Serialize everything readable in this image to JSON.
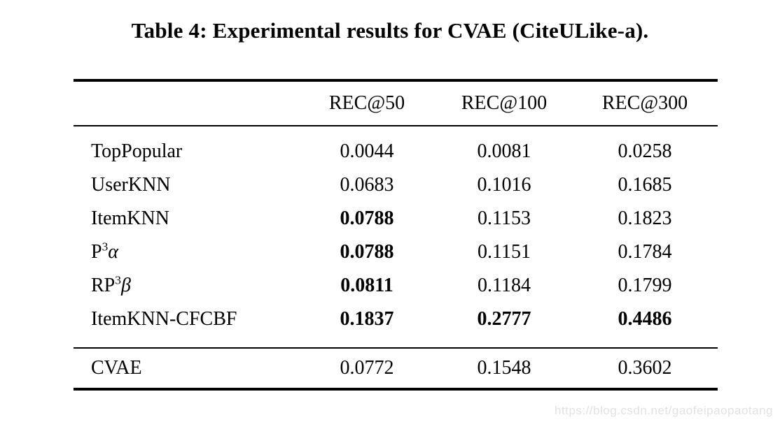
{
  "title": "Table 4: Experimental results for CVAE (CiteULike-a).",
  "table": {
    "columns": [
      "REC@50",
      "REC@100",
      "REC@300"
    ],
    "rows": [
      {
        "label_base": "TopPopular",
        "values": [
          "0.0044",
          "0.0081",
          "0.0258"
        ],
        "bold": [
          false,
          false,
          false
        ]
      },
      {
        "label_base": "UserKNN",
        "values": [
          "0.0683",
          "0.1016",
          "0.1685"
        ],
        "bold": [
          false,
          false,
          false
        ]
      },
      {
        "label_base": "ItemKNN",
        "values": [
          "0.0788",
          "0.1153",
          "0.1823"
        ],
        "bold": [
          true,
          false,
          false
        ]
      },
      {
        "label_base": "P",
        "label_sup": "3",
        "label_greek": "α",
        "values": [
          "0.0788",
          "0.1151",
          "0.1784"
        ],
        "bold": [
          true,
          false,
          false
        ]
      },
      {
        "label_base": "RP",
        "label_sup": "3",
        "label_greek": "β",
        "values": [
          "0.0811",
          "0.1184",
          "0.1799"
        ],
        "bold": [
          true,
          false,
          false
        ]
      },
      {
        "label_base": "ItemKNN-CFCBF",
        "values": [
          "0.1837",
          "0.2777",
          "0.4486"
        ],
        "bold": [
          true,
          true,
          true
        ]
      }
    ],
    "footer_row": {
      "label": "CVAE",
      "values": [
        "0.0772",
        "0.1548",
        "0.3602"
      ],
      "bold": [
        false,
        false,
        false
      ]
    }
  },
  "watermark": "https://blog.csdn.net/gaofeipaopaotang"
}
